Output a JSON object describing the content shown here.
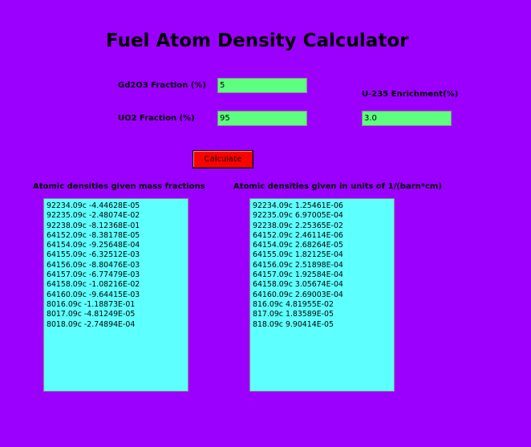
{
  "title": "Fuel Atom Density Calculator",
  "inputs": {
    "gd2o3": {
      "label": "Gd2O3 Fraction (%)",
      "value": "5"
    },
    "uo2": {
      "label": "UO2 Fraction (%)",
      "value": "95"
    },
    "enrichment": {
      "label": "U-235 Enrichment(%)",
      "value": "3.0"
    }
  },
  "calculate_label": "Calculate",
  "mass_panel": {
    "heading": "Atomic densities given mass fractions",
    "lines": [
      "92234.09c -4.44628E-05",
      "92235.09c -2.48074E-02",
      "92238.09c -8.12368E-01",
      "64152.09c -8.38178E-05",
      "64154.09c -9.25648E-04",
      "64155.09c -6.32512E-03",
      "64156.09c -8.80476E-03",
      "64157.09c -6.77479E-03",
      "64158.09c -1.08216E-02",
      "64160.09c -9.64415E-03",
      "8016.09c -1.18873E-01",
      "8017.09c -4.81249E-05",
      "8018.09c -2.74894E-04"
    ]
  },
  "barn_panel": {
    "heading": "Atomic densities given in units of 1/(barn*cm)",
    "lines": [
      "92234.09c 1.25461E-06",
      "92235.09c 6.97005E-04",
      "92238.09c 2.25365E-02",
      "64152.09c 2.46114E-06",
      "64154.09c 2.68264E-05",
      "64155.09c 1.82125E-04",
      "64156.09c 2.51898E-04",
      "64157.09c 1.92584E-04",
      "64158.09c 3.05674E-04",
      "64160.09c 2.69003E-04",
      "816.09c 4.81955E-02",
      "817.09c 1.83589E-05",
      "818.09c 9.90414E-05"
    ]
  },
  "colors": {
    "background": "#9B00FF",
    "input_field": "#5EFF80",
    "output_box": "#5EFFFF",
    "button": "#FF0000"
  }
}
